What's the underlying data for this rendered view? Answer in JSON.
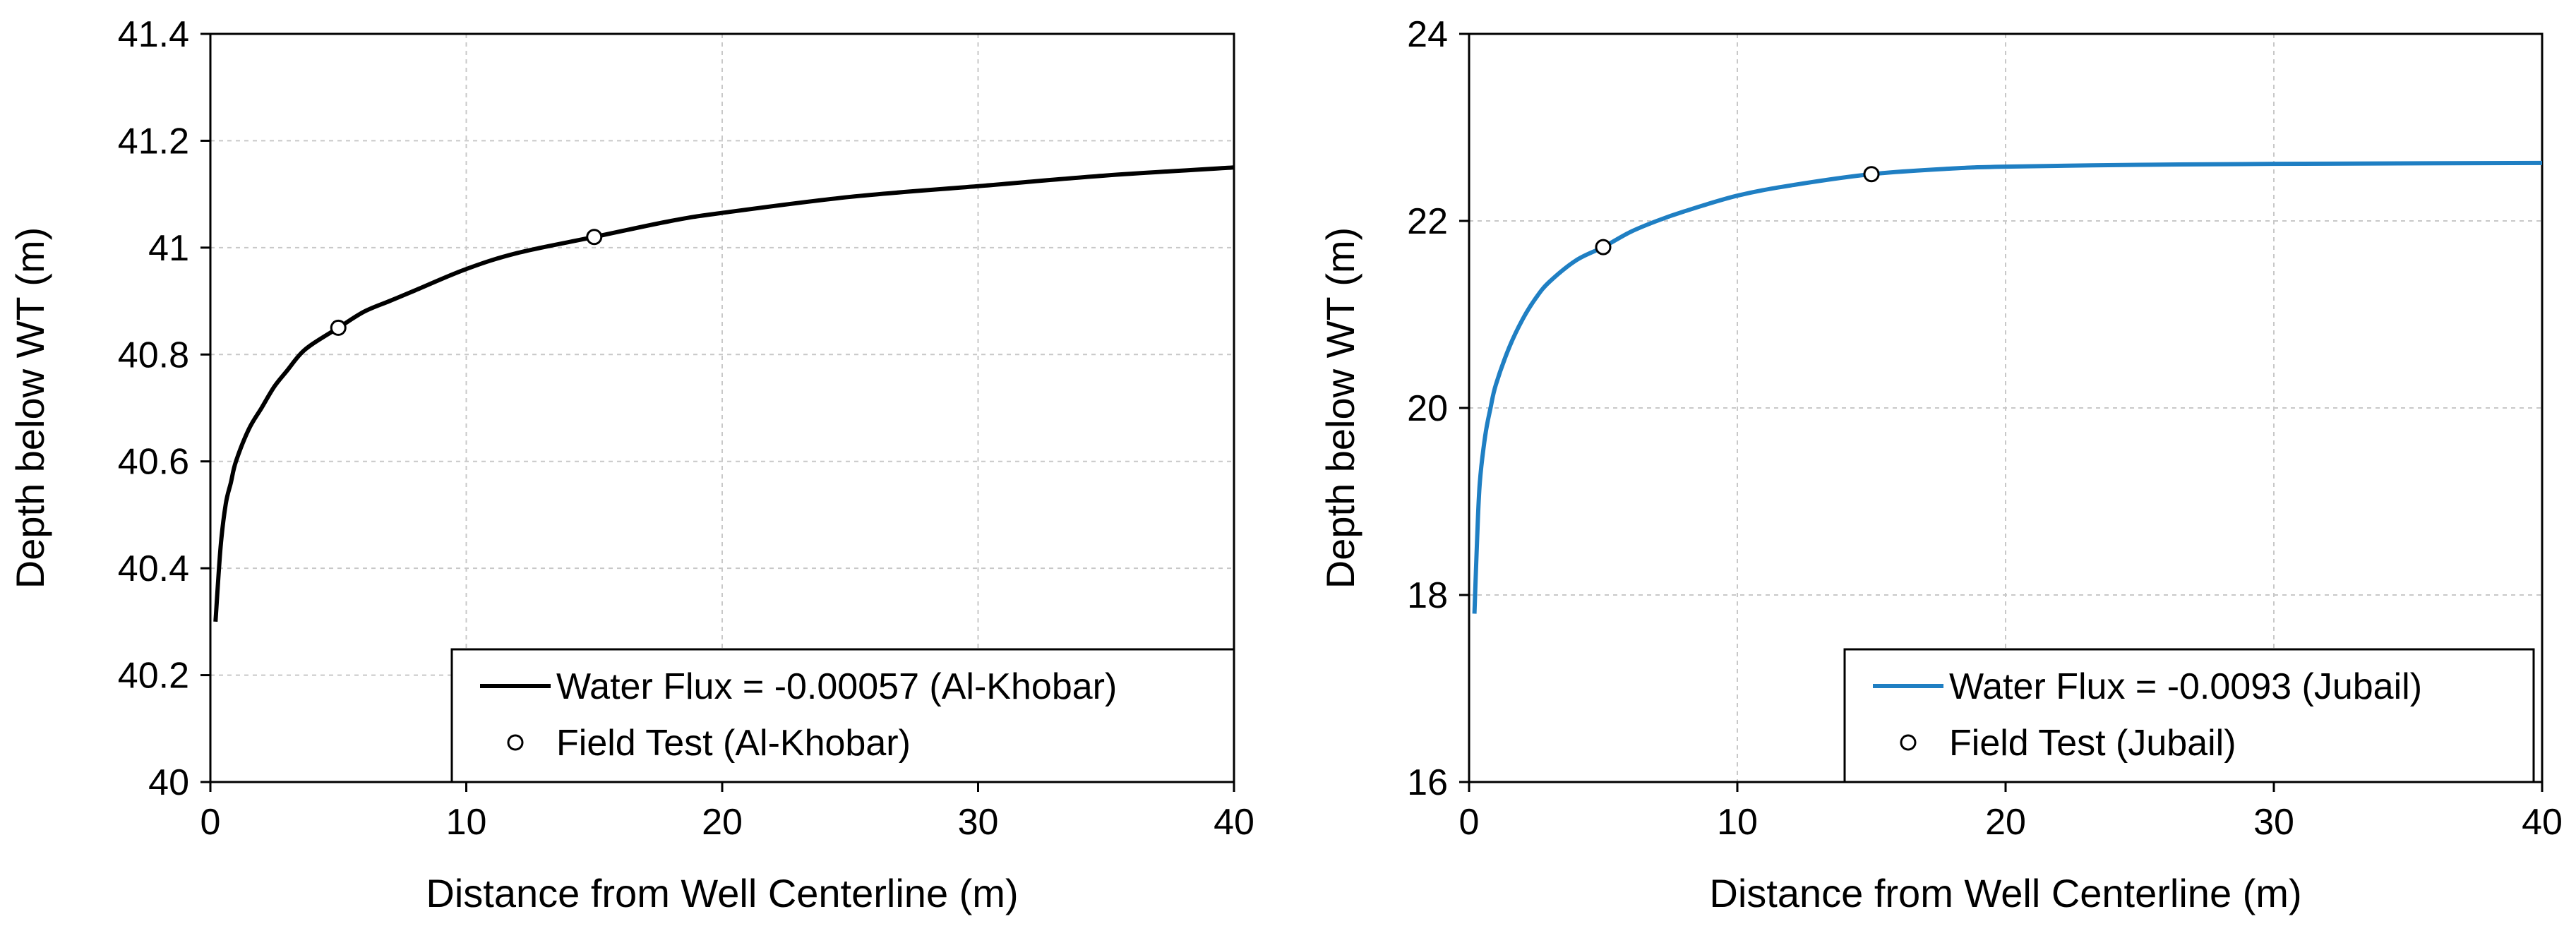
{
  "chart_data": [
    {
      "type": "line",
      "title": "",
      "xlabel": "Distance from Well Centerline  (m)",
      "ylabel": "Depth below WT (m)",
      "xlim": [
        0,
        40
      ],
      "ylim": [
        40,
        41.4
      ],
      "xticks": [
        0,
        10,
        20,
        30,
        40
      ],
      "xtick_labels": [
        "0",
        "10",
        "20",
        "30",
        "40"
      ],
      "yticks": [
        40,
        40.2,
        40.4,
        40.6,
        40.8,
        41,
        41.2,
        41.4
      ],
      "ytick_labels": [
        "40",
        "40.2",
        "40.4",
        "40.6",
        "40.8",
        "41",
        "41.2",
        "41.4"
      ],
      "grid": true,
      "legend_position": "bottom-right",
      "series": [
        {
          "name": "Water Flux = -0.00057 (Al-Khobar)",
          "kind": "line",
          "color": "#000000",
          "x": [
            0.2,
            0.4,
            0.6,
            0.8,
            1,
            1.5,
            2,
            2.5,
            3,
            3.5,
            4,
            5,
            6,
            7,
            8,
            10,
            12,
            15,
            18,
            20,
            25,
            30,
            35,
            40
          ],
          "y": [
            40.3,
            40.44,
            40.52,
            40.56,
            40.6,
            40.66,
            40.7,
            40.74,
            40.77,
            40.8,
            40.82,
            40.85,
            40.88,
            40.9,
            40.92,
            40.96,
            40.99,
            41.02,
            41.05,
            41.065,
            41.095,
            41.115,
            41.135,
            41.15
          ]
        },
        {
          "name": "Field Test (Al-Khobar)",
          "kind": "scatter",
          "color": "#000000",
          "x": [
            5,
            15
          ],
          "y": [
            40.85,
            41.02
          ]
        }
      ]
    },
    {
      "type": "line",
      "title": "",
      "xlabel": "Distance from Well Centerline  (m)",
      "ylabel": "Depth below WT (m)",
      "xlim": [
        0,
        40
      ],
      "ylim": [
        16,
        24
      ],
      "xticks": [
        0,
        10,
        20,
        30,
        40
      ],
      "xtick_labels": [
        "0",
        "10",
        "20",
        "30",
        "40"
      ],
      "yticks": [
        16,
        18,
        20,
        22,
        24
      ],
      "ytick_labels": [
        "16",
        "18",
        "20",
        "22",
        "24"
      ],
      "grid": true,
      "legend_position": "bottom-right",
      "series": [
        {
          "name": "Water Flux = -0.0093 (Jubail)",
          "kind": "line",
          "color": "#1f7fc3",
          "x": [
            0.2,
            0.3,
            0.4,
            0.6,
            0.8,
            1,
            1.5,
            2,
            2.5,
            3,
            4,
            5,
            6,
            7,
            8,
            10,
            12,
            15,
            18,
            20,
            25,
            30,
            40
          ],
          "y": [
            17.8,
            18.6,
            19.2,
            19.7,
            20.0,
            20.25,
            20.65,
            20.95,
            21.18,
            21.35,
            21.58,
            21.72,
            21.88,
            22.0,
            22.1,
            22.27,
            22.38,
            22.5,
            22.56,
            22.58,
            22.6,
            22.61,
            22.62
          ]
        },
        {
          "name": "Field Test (Jubail)",
          "kind": "scatter",
          "color": "#000000",
          "x": [
            5,
            15
          ],
          "y": [
            21.72,
            22.5
          ]
        }
      ]
    }
  ]
}
